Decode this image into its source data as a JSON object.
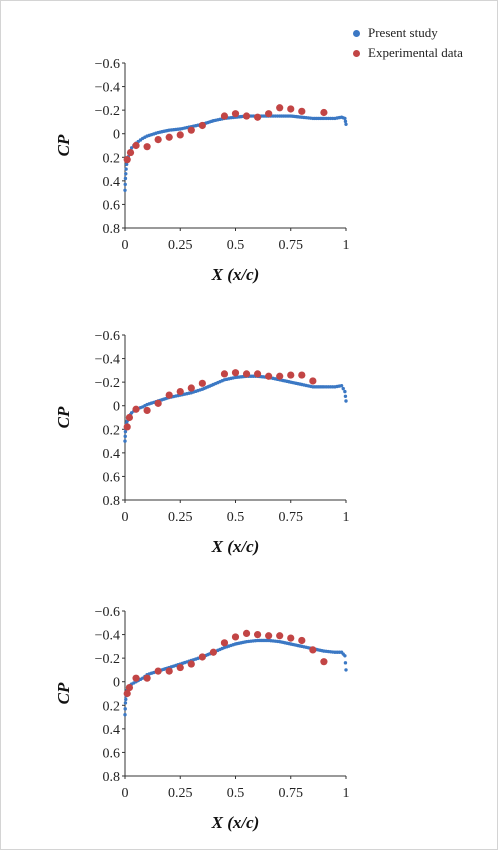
{
  "legend": {
    "present": {
      "label": "Present study",
      "color": "#3b78c4"
    },
    "experimental": {
      "label": "Experimental data",
      "color": "#c24545"
    }
  },
  "chart_data": [
    {
      "type": "scatter",
      "xlabel": "X (x/c)",
      "ylabel": "CP",
      "xlim": [
        0,
        1
      ],
      "ylim": [
        0.8,
        -0.6
      ],
      "y_inverted": true,
      "x_ticks": [
        "0",
        "0.25",
        "0.5",
        "0.75",
        "1"
      ],
      "y_ticks": [
        "−0.6",
        "−0.4",
        "−0.2",
        "0",
        "0.2",
        "0.4",
        "0.6",
        "0.8"
      ],
      "grid": false,
      "series": [
        {
          "name": "Present study",
          "x": [
            0,
            0.002,
            0.005,
            0.01,
            0.02,
            0.03,
            0.05,
            0.08,
            0.1,
            0.15,
            0.2,
            0.25,
            0.3,
            0.35,
            0.4,
            0.45,
            0.5,
            0.55,
            0.6,
            0.65,
            0.7,
            0.75,
            0.8,
            0.85,
            0.9,
            0.95,
            0.98,
            0.995,
            1.0
          ],
          "y": [
            0.48,
            0.38,
            0.3,
            0.22,
            0.17,
            0.12,
            0.08,
            0.04,
            0.02,
            -0.01,
            -0.03,
            -0.04,
            -0.06,
            -0.08,
            -0.11,
            -0.13,
            -0.14,
            -0.15,
            -0.15,
            -0.15,
            -0.15,
            -0.15,
            -0.14,
            -0.13,
            -0.13,
            -0.13,
            -0.14,
            -0.13,
            -0.08
          ]
        },
        {
          "name": "Experimental data",
          "x": [
            0.01,
            0.025,
            0.05,
            0.1,
            0.15,
            0.2,
            0.25,
            0.3,
            0.35,
            0.45,
            0.5,
            0.55,
            0.6,
            0.65,
            0.7,
            0.75,
            0.8,
            0.9
          ],
          "y": [
            0.22,
            0.16,
            0.1,
            0.11,
            0.05,
            0.03,
            0.01,
            -0.03,
            -0.07,
            -0.15,
            -0.17,
            -0.15,
            -0.14,
            -0.17,
            -0.22,
            -0.21,
            -0.19,
            -0.18
          ]
        }
      ]
    },
    {
      "type": "scatter",
      "xlabel": "X (x/c)",
      "ylabel": "CP",
      "xlim": [
        0,
        1
      ],
      "ylim": [
        0.8,
        -0.6
      ],
      "y_inverted": true,
      "x_ticks": [
        "0",
        "0.25",
        "0.5",
        "0.75",
        "1"
      ],
      "y_ticks": [
        "−0.6",
        "−0.4",
        "−0.2",
        "0",
        "0.2",
        "0.4",
        "0.6",
        "0.8"
      ],
      "grid": false,
      "series": [
        {
          "name": "Present study",
          "x": [
            0,
            0.002,
            0.005,
            0.01,
            0.02,
            0.03,
            0.05,
            0.08,
            0.1,
            0.15,
            0.2,
            0.25,
            0.3,
            0.35,
            0.4,
            0.45,
            0.5,
            0.55,
            0.6,
            0.65,
            0.7,
            0.75,
            0.8,
            0.85,
            0.9,
            0.95,
            0.98,
            0.995,
            1.0
          ],
          "y": [
            0.3,
            0.22,
            0.17,
            0.13,
            0.09,
            0.06,
            0.03,
            0.01,
            -0.01,
            -0.04,
            -0.07,
            -0.09,
            -0.11,
            -0.14,
            -0.18,
            -0.22,
            -0.24,
            -0.25,
            -0.25,
            -0.24,
            -0.22,
            -0.2,
            -0.18,
            -0.16,
            -0.16,
            -0.16,
            -0.17,
            -0.12,
            -0.04
          ]
        },
        {
          "name": "Experimental data",
          "x": [
            0.01,
            0.02,
            0.05,
            0.1,
            0.15,
            0.2,
            0.25,
            0.3,
            0.35,
            0.45,
            0.5,
            0.55,
            0.6,
            0.65,
            0.7,
            0.75,
            0.8,
            0.85
          ],
          "y": [
            0.18,
            0.1,
            0.03,
            0.04,
            -0.02,
            -0.09,
            -0.12,
            -0.15,
            -0.19,
            -0.27,
            -0.28,
            -0.27,
            -0.27,
            -0.25,
            -0.25,
            -0.26,
            -0.26,
            -0.21
          ]
        }
      ]
    },
    {
      "type": "scatter",
      "xlabel": "X (x/c)",
      "ylabel": "CP",
      "xlim": [
        0,
        1
      ],
      "ylim": [
        0.8,
        -0.6
      ],
      "y_inverted": true,
      "x_ticks": [
        "0",
        "0.25",
        "0.5",
        "0.75",
        "1"
      ],
      "y_ticks": [
        "−0.6",
        "−0.4",
        "−0.2",
        "0",
        "0.2",
        "0.4",
        "0.6",
        "0.8"
      ],
      "grid": false,
      "series": [
        {
          "name": "Present study",
          "x": [
            0,
            0.002,
            0.005,
            0.01,
            0.02,
            0.03,
            0.05,
            0.08,
            0.1,
            0.15,
            0.2,
            0.25,
            0.3,
            0.35,
            0.4,
            0.45,
            0.5,
            0.55,
            0.6,
            0.65,
            0.7,
            0.75,
            0.8,
            0.85,
            0.9,
            0.95,
            0.98,
            0.995,
            1.0
          ],
          "y": [
            0.28,
            0.18,
            0.12,
            0.07,
            0.04,
            0.02,
            0.0,
            -0.03,
            -0.06,
            -0.09,
            -0.12,
            -0.15,
            -0.18,
            -0.21,
            -0.25,
            -0.29,
            -0.32,
            -0.34,
            -0.35,
            -0.35,
            -0.34,
            -0.32,
            -0.3,
            -0.28,
            -0.26,
            -0.25,
            -0.25,
            -0.22,
            -0.1
          ]
        },
        {
          "name": "Experimental data",
          "x": [
            0.01,
            0.02,
            0.05,
            0.1,
            0.15,
            0.2,
            0.25,
            0.3,
            0.35,
            0.4,
            0.45,
            0.5,
            0.55,
            0.6,
            0.65,
            0.7,
            0.75,
            0.8,
            0.85,
            0.9
          ],
          "y": [
            0.1,
            0.05,
            -0.03,
            -0.03,
            -0.09,
            -0.09,
            -0.12,
            -0.15,
            -0.21,
            -0.25,
            -0.33,
            -0.38,
            -0.41,
            -0.4,
            -0.39,
            -0.39,
            -0.37,
            -0.35,
            -0.27,
            -0.17
          ]
        }
      ]
    }
  ]
}
